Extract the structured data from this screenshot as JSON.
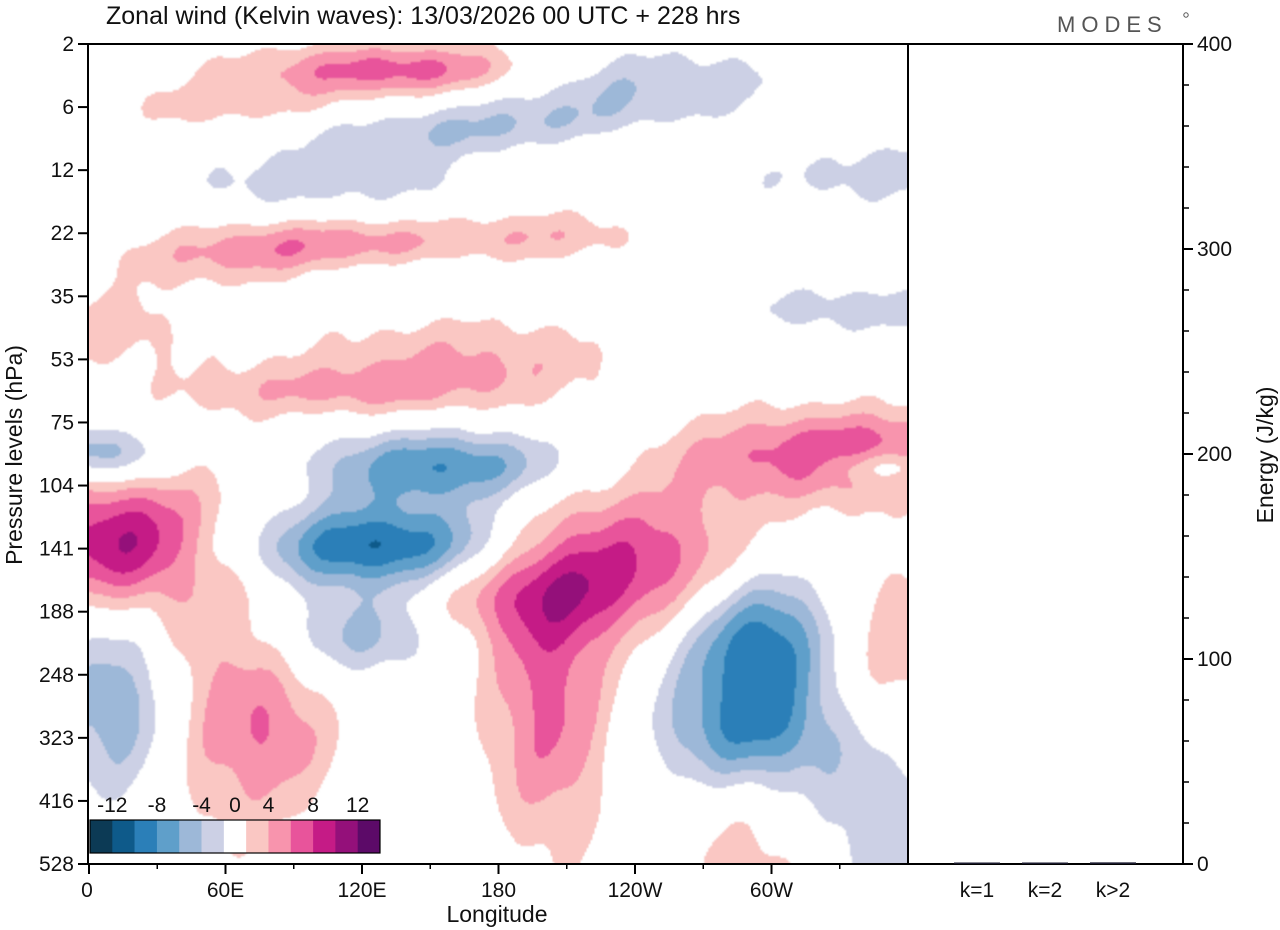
{
  "brand": {
    "logo_text": "MODES"
  },
  "chart_data": [
    {
      "type": "heatmap",
      "title": "Zonal wind (Kelvin waves):  13/03/2026  00 UTC  + 228 hrs",
      "xlabel": "Longitude",
      "ylabel": "Pressure levels (hPa)",
      "x_ticks": [
        "0",
        "60E",
        "120E",
        "180",
        "120W",
        "60W"
      ],
      "x_tick_values_deg": [
        0,
        60,
        120,
        180,
        240,
        300
      ],
      "xlim_deg": [
        0,
        360
      ],
      "y_ticks": [
        "2",
        "6",
        "12",
        "22",
        "35",
        "53",
        "75",
        "104",
        "141",
        "188",
        "248",
        "323",
        "416",
        "528"
      ],
      "colorbar": {
        "labels": [
          "-12",
          "-8",
          "-4",
          "0",
          "4",
          "8",
          "12"
        ],
        "label_values": [
          -12,
          -8,
          -4,
          0,
          4,
          8,
          12
        ],
        "levels": [
          -14,
          -12,
          -10,
          -8,
          -6,
          -4,
          -2,
          2,
          4,
          6,
          8,
          10,
          12,
          14
        ],
        "colors": [
          "#0c3a55",
          "#0e5a8a",
          "#2b7fb8",
          "#5f9fca",
          "#9db8d8",
          "#ccd0e5",
          "#ffffff",
          "#fac7c3",
          "#f894ad",
          "#e8549b",
          "#c51b86",
          "#94107a",
          "#5c0a68"
        ]
      },
      "features": [
        {
          "sign": -1,
          "lon": 132,
          "lev": 8.0,
          "amp": 13,
          "sx": 4.5,
          "sy": 0.5,
          "tilt": -0.22
        },
        {
          "sign": -1,
          "lon": 155,
          "lev": 6.7,
          "amp": 8,
          "sx": 4,
          "sy": 0.4,
          "tilt": -0.22
        },
        {
          "sign": -1,
          "lon": 120,
          "lev": 9.3,
          "amp": 6,
          "sx": 3,
          "sy": 0.5,
          "tilt": -0.3
        },
        {
          "sign": -1,
          "lon": 297,
          "lev": 9.5,
          "amp": 11,
          "sx": 2.5,
          "sy": 0.9,
          "tilt": -0.2
        },
        {
          "sign": -1,
          "lon": 292,
          "lev": 11.0,
          "amp": 6,
          "sx": 3,
          "sy": 0.6,
          "tilt": 0
        },
        {
          "sign": -1,
          "lon": 12,
          "lev": 10.5,
          "amp": 6,
          "sx": 1.8,
          "sy": 1.0,
          "tilt": 0
        },
        {
          "sign": -1,
          "lon": 5,
          "lev": 6.5,
          "amp": 6,
          "sx": 2,
          "sy": 0.3,
          "tilt": 0
        },
        {
          "sign": -1,
          "lon": 352,
          "lev": 6.7,
          "amp": 5,
          "sx": 2,
          "sy": 0.2,
          "tilt": 0
        },
        {
          "sign": -1,
          "lon": 350,
          "lev": 12.3,
          "amp": 3.5,
          "sx": 2.5,
          "sy": 0.9,
          "tilt": 0
        },
        {
          "sign": -1,
          "lon": 100,
          "lev": 2.2,
          "amp": 3,
          "sx": 5,
          "sy": 0.3,
          "tilt": -0.1
        },
        {
          "sign": -1,
          "lon": 150,
          "lev": 1.5,
          "amp": 3,
          "sx": 6,
          "sy": 0.3,
          "tilt": -0.1
        },
        {
          "sign": -1,
          "lon": 235,
          "lev": 0.6,
          "amp": 4.5,
          "sx": 5,
          "sy": 0.4,
          "tilt": -0.12
        },
        {
          "sign": -1,
          "lon": 200,
          "lev": 1.3,
          "amp": 3,
          "sx": 5,
          "sy": 0.3,
          "tilt": -0.1
        },
        {
          "sign": -1,
          "lon": 345,
          "lev": 2.0,
          "amp": 3,
          "sx": 5,
          "sy": 0.4,
          "tilt": -0.12
        },
        {
          "sign": -1,
          "lon": 335,
          "lev": 4.2,
          "amp": 3,
          "sx": 4,
          "sy": 0.3,
          "tilt": -0.1
        },
        {
          "sign": -1,
          "lon": 120,
          "lev": 3.5,
          "amp": 3,
          "sx": 4,
          "sy": 0.3,
          "tilt": -0.1
        },
        {
          "sign": 1,
          "lon": 12,
          "lev": 7.9,
          "amp": 10,
          "sx": 2.5,
          "sy": 0.7,
          "tilt": -0.3
        },
        {
          "sign": 1,
          "lon": 195,
          "lev": 8.5,
          "amp": 7.5,
          "sx": 6,
          "sy": 0.7,
          "tilt": 0
        },
        {
          "sign": 1,
          "lon": 203,
          "lev": 10.5,
          "amp": 6.5,
          "sx": 2,
          "sy": 1.6,
          "tilt": 0
        },
        {
          "sign": 1,
          "lon": 335,
          "lev": 6.5,
          "amp": 8,
          "sx": 5,
          "sy": 0.5,
          "tilt": -0.2
        },
        {
          "sign": 1,
          "lon": 60,
          "lev": 9.8,
          "amp": 4,
          "sx": 2.5,
          "sy": 2.2,
          "tilt": 0
        },
        {
          "sign": 1,
          "lon": 83,
          "lev": 11.0,
          "amp": 3.5,
          "sx": 2,
          "sy": 0.8,
          "tilt": 0
        },
        {
          "sign": 1,
          "lon": 350,
          "lev": 9.5,
          "amp": 4,
          "sx": 3,
          "sy": 1.0,
          "tilt": 0
        },
        {
          "sign": 1,
          "lon": 290,
          "lev": 13.3,
          "amp": 3.5,
          "sx": 2,
          "sy": 1.0,
          "tilt": 0
        },
        {
          "sign": 1,
          "lon": 248,
          "lev": 7.8,
          "amp": 4,
          "sx": 4,
          "sy": 0.8,
          "tilt": 0
        },
        {
          "sign": 1,
          "lon": 140,
          "lev": 0.4,
          "amp": 7.5,
          "sx": 5,
          "sy": 0.3,
          "tilt": -0.1
        },
        {
          "sign": 1,
          "lon": 110,
          "lev": 3.2,
          "amp": 6,
          "sx": 5,
          "sy": 0.3,
          "tilt": -0.15
        },
        {
          "sign": 1,
          "lon": 110,
          "lev": 5.5,
          "amp": 3.5,
          "sx": 5,
          "sy": 0.3,
          "tilt": -0.2
        },
        {
          "sign": 1,
          "lon": 165,
          "lev": 5.0,
          "amp": 4,
          "sx": 5,
          "sy": 0.5,
          "tilt": -0.25
        },
        {
          "sign": 1,
          "lon": 240,
          "lev": 1.6,
          "amp": 3.5,
          "sx": 5,
          "sy": 0.3,
          "tilt": -0.1
        },
        {
          "sign": 1,
          "lon": 5,
          "lev": 4.5,
          "amp": 3,
          "sx": 3,
          "sy": 0.5,
          "tilt": 0
        },
        {
          "sign": 1,
          "lon": 72,
          "lev": 3.5,
          "amp": 3,
          "sx": 4,
          "sy": 0.3,
          "tilt": -0.1
        },
        {
          "sign": 1,
          "lon": 205,
          "lev": 3.0,
          "amp": 3,
          "sx": 3,
          "sy": 0.3,
          "tilt": -0.1
        },
        {
          "sign": 1,
          "lon": 60,
          "lev": 1.0,
          "amp": 3,
          "sx": 4,
          "sy": 0.3,
          "tilt": -0.1
        }
      ]
    },
    {
      "type": "bar",
      "categories": [
        "k=1",
        "k=2",
        "k>2"
      ],
      "values": [
        0.2,
        0.6,
        0.8
      ],
      "ylabel": "Energy (J/kg)",
      "ylim": [
        0,
        400
      ],
      "y_ticks": [
        0,
        100,
        200,
        300,
        400
      ],
      "bar_color": "#1a1a2e"
    }
  ]
}
